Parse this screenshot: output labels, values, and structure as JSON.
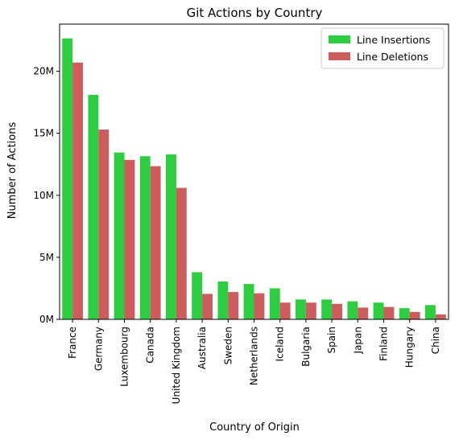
{
  "chart_data": {
    "type": "bar",
    "title": "Git Actions by Country",
    "xlabel": "Country of Origin",
    "ylabel": "Number of Actions",
    "categories": [
      "France",
      "Germany",
      "Luxembourg",
      "Canada",
      "United Kingdom",
      "Australia",
      "Sweden",
      "Netherlands",
      "Iceland",
      "Bulgaria",
      "Spain",
      "Japan",
      "Finland",
      "Hungary",
      "China"
    ],
    "series": [
      {
        "name": "Line Insertions",
        "color": "#2ecc40",
        "values": [
          22650000,
          18100000,
          13450000,
          13150000,
          13300000,
          3800000,
          3050000,
          2850000,
          2500000,
          1600000,
          1600000,
          1450000,
          1350000,
          900000,
          1150000
        ]
      },
      {
        "name": "Line Deletions",
        "color": "#cd5c5c",
        "values": [
          20700000,
          15300000,
          12850000,
          12350000,
          10600000,
          2050000,
          2200000,
          2100000,
          1350000,
          1350000,
          1250000,
          950000,
          1000000,
          600000,
          400000
        ]
      }
    ],
    "ylim": [
      0,
      23800000
    ],
    "yticks": [
      0,
      5000000,
      10000000,
      15000000,
      20000000
    ],
    "ytick_labels": [
      "0M",
      "5M",
      "10M",
      "15M",
      "20M"
    ],
    "legend_position": "upper right",
    "grid": false
  }
}
